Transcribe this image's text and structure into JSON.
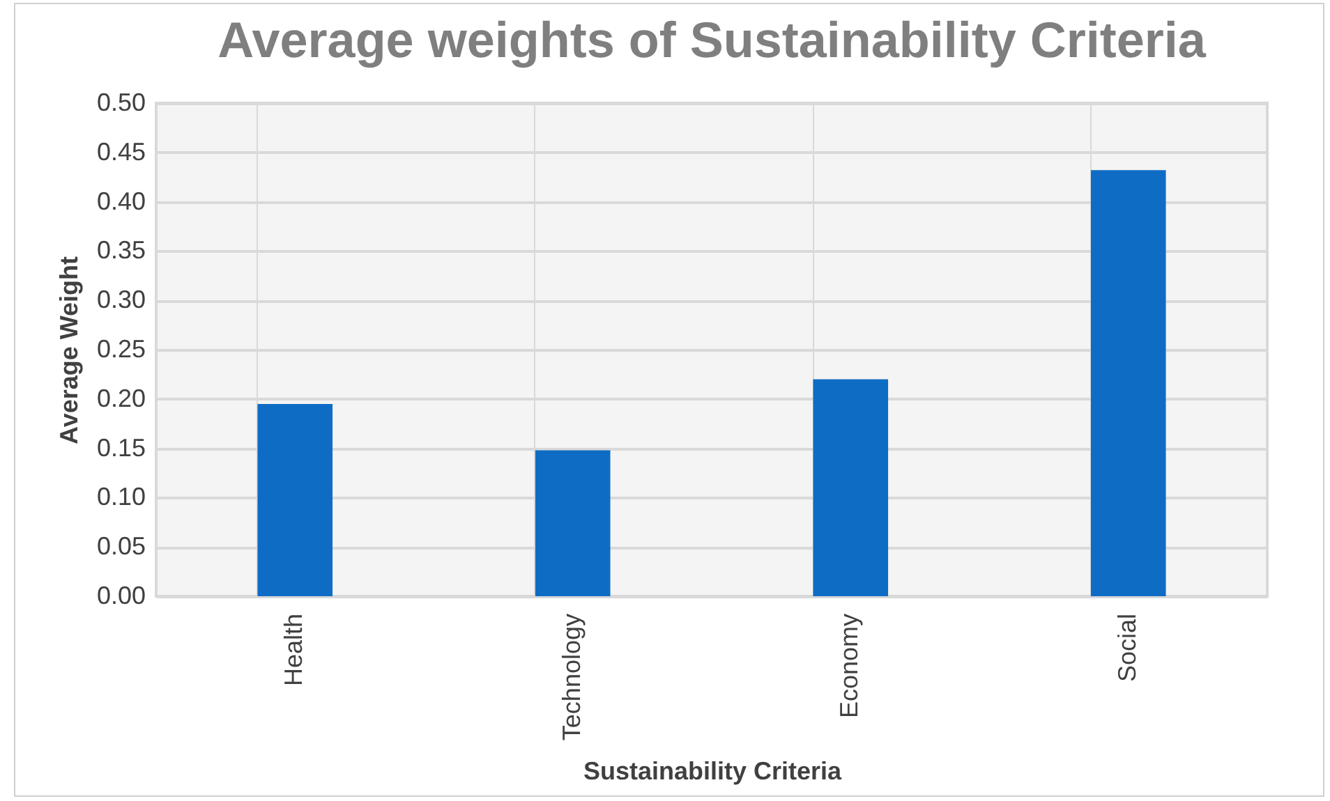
{
  "chart_data": {
    "type": "bar",
    "title": "Average weights of Sustainability  Criteria",
    "xlabel": "Sustainability Criteria",
    "ylabel": "Average Weight",
    "categories": [
      "Health",
      "Technology",
      "Economy",
      "Social"
    ],
    "values": [
      0.195,
      0.148,
      0.22,
      0.432
    ],
    "color": "#0f6cc4",
    "ylim": [
      0,
      0.5
    ],
    "yticks": [
      {
        "value": 0,
        "label": "0.00"
      },
      {
        "value": 0.05,
        "label": "0.05"
      },
      {
        "value": 0.1,
        "label": "0.10"
      },
      {
        "value": 0.15,
        "label": "0.15"
      },
      {
        "value": 0.2,
        "label": "0.20"
      },
      {
        "value": 0.25,
        "label": "0.25"
      },
      {
        "value": 0.3,
        "label": "0.30"
      },
      {
        "value": 0.35,
        "label": "0.35"
      },
      {
        "value": 0.4,
        "label": "0.40"
      },
      {
        "value": 0.45,
        "label": "0.45"
      },
      {
        "value": 0.5,
        "label": "0.50"
      }
    ],
    "grid": true
  }
}
